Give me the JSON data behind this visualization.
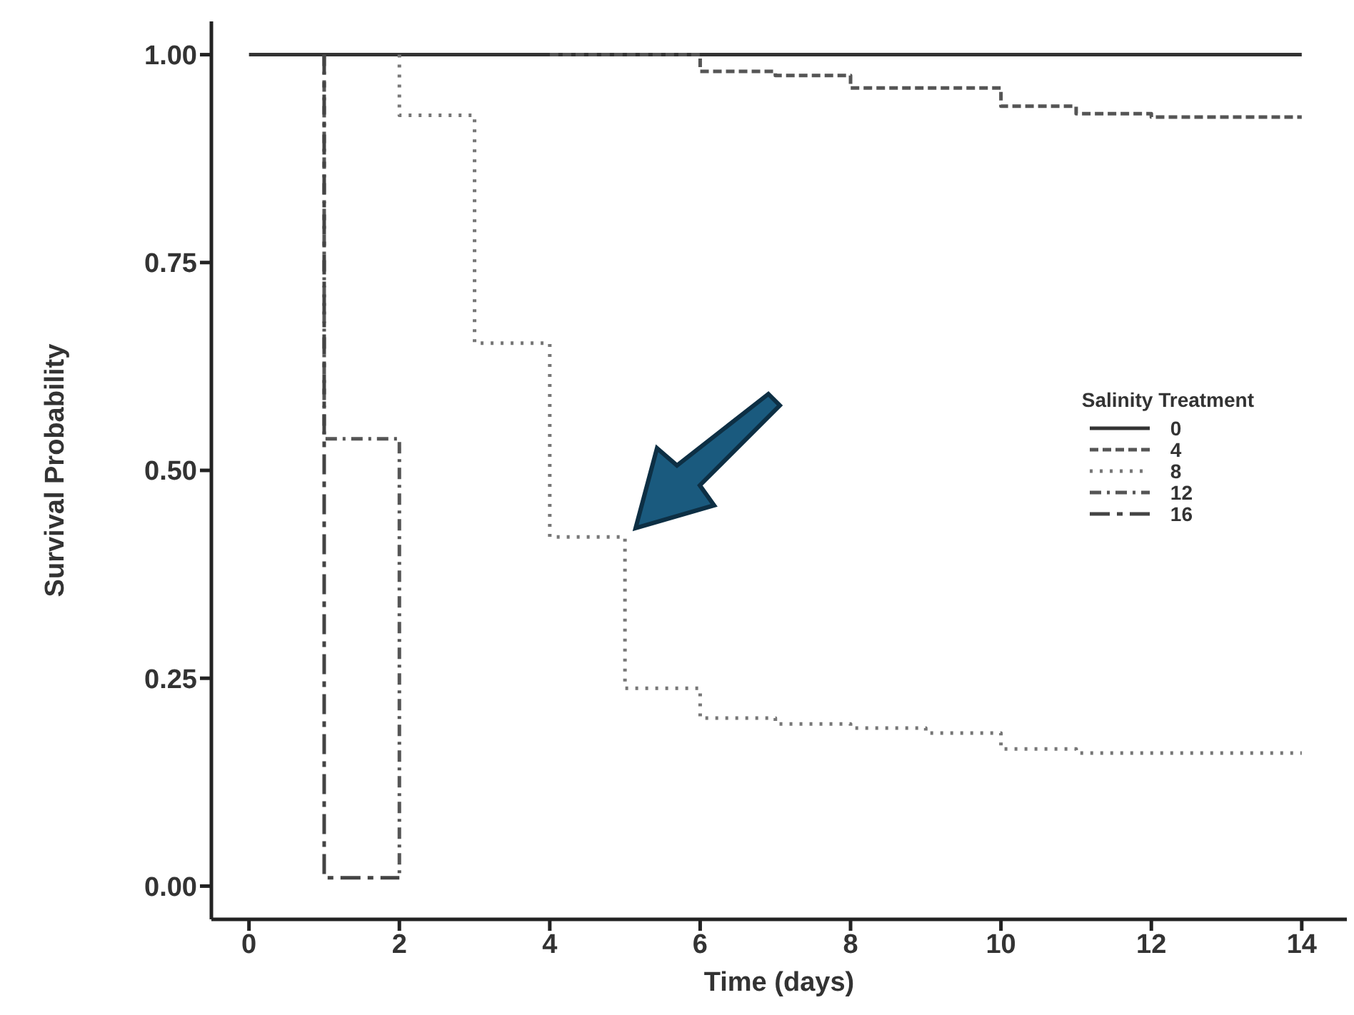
{
  "chart_data": {
    "type": "step",
    "xlabel": "Time (days)",
    "ylabel": "Survival Probability",
    "legend_title": "Salinity Treatment",
    "legend": "center right",
    "xlim": [
      -0.5,
      14.6
    ],
    "xticks": [
      0,
      2,
      4,
      6,
      8,
      10,
      12,
      14
    ],
    "ylim": [
      -0.04,
      1.04
    ],
    "yticks": [
      {
        "value": 0,
        "label": "0.00"
      },
      {
        "value": 0.25,
        "label": "0.25"
      },
      {
        "value": 0.5,
        "label": "0.50"
      },
      {
        "value": 0.75,
        "label": "0.75"
      },
      {
        "value": 1,
        "label": "1.00"
      }
    ],
    "series": [
      {
        "name": "0",
        "color": "#333333",
        "line_style": "solid",
        "x": [
          0,
          14
        ],
        "values": [
          1,
          1
        ]
      },
      {
        "name": "4",
        "color": "#555555",
        "line_style": "dashed",
        "x": [
          4,
          6,
          7,
          8,
          10,
          11,
          12,
          14
        ],
        "values": [
          1,
          0.98,
          0.975,
          0.96,
          0.938,
          0.929,
          0.925,
          0.925
        ]
      },
      {
        "name": "8",
        "color": "#777777",
        "line_style": "dotted",
        "x": [
          2,
          2,
          3,
          4,
          5,
          6,
          7,
          8,
          9,
          10,
          11,
          14
        ],
        "values": [
          1,
          0.927,
          0.653,
          0.42,
          0.238,
          0.202,
          0.195,
          0.19,
          0.184,
          0.165,
          0.16,
          0.16
        ]
      },
      {
        "name": "12",
        "color": "#555555",
        "line_style": "dashdot",
        "x": [
          1,
          1,
          2,
          2
        ],
        "values": [
          1,
          0.538,
          0.538,
          0.01
        ]
      },
      {
        "name": "16",
        "color": "#444444",
        "line_style": "longdash",
        "x": [
          1,
          1,
          2
        ],
        "values": [
          1,
          0.01,
          0.01
        ]
      }
    ]
  }
}
